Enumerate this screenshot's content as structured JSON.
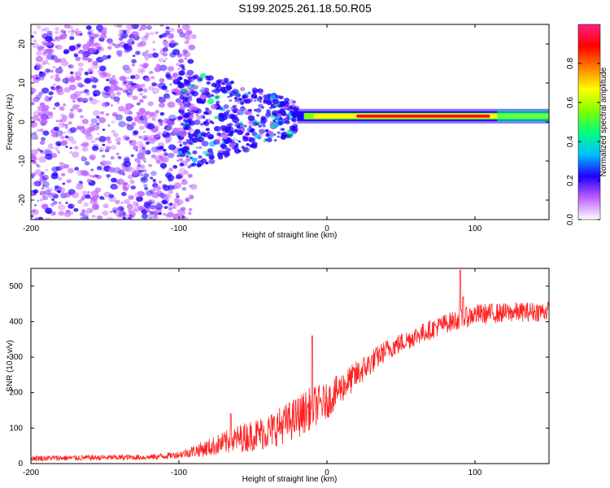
{
  "title": "S199.2025.261.18.50.R05",
  "chart_data": [
    {
      "type": "heatmap",
      "name": "spectrogram",
      "xlabel": "Height of straight line (km)",
      "ylabel": "Frequency (Hz)",
      "xlim": [
        -200,
        150
      ],
      "ylim": [
        -25,
        25
      ],
      "xticks": [
        -200,
        -100,
        0,
        100
      ],
      "xtick_labels": [
        "-200",
        "-100",
        "0",
        "100"
      ],
      "yticks": [
        -20,
        -10,
        0,
        10,
        20
      ],
      "ytick_labels": [
        "-20",
        "-10",
        "0",
        "10",
        "20"
      ],
      "colorbar": {
        "label": "Normalized spectral amplitude",
        "range": [
          0.0,
          1.0
        ],
        "ticks": [
          0.0,
          0.2,
          0.4,
          0.6,
          0.8
        ],
        "tick_labels": [
          "0.0",
          "0.2",
          "0.4",
          "0.6",
          "0.8"
        ],
        "colors": [
          "#ffffff",
          "#c060ff",
          "#2000ff",
          "#00c0ff",
          "#00ff80",
          "#80ff00",
          "#ffff00",
          "#ff8000",
          "#ff0000",
          "#ff2080"
        ]
      },
      "features": {
        "noise_region_x": [
          -200,
          -100
        ],
        "band_start_x": -20,
        "band_frequency_hz": 1.5,
        "peak_band_x": [
          20,
          110
        ]
      }
    },
    {
      "type": "line",
      "name": "snr",
      "xlabel": "Height of straight line (km)",
      "ylabel": "SNR (10 * v/v)",
      "xlim": [
        -200,
        150
      ],
      "ylim": [
        0,
        550
      ],
      "xticks": [
        -200,
        -100,
        0,
        100
      ],
      "xtick_labels": [
        "-200",
        "-100",
        "0",
        "100"
      ],
      "yticks": [
        0,
        100,
        200,
        300,
        400,
        500
      ],
      "ytick_labels": [
        "0",
        "100",
        "200",
        "300",
        "400",
        "500"
      ],
      "color": "#ff2020",
      "trend_x": [
        -200,
        -120,
        -100,
        -80,
        -60,
        -40,
        -20,
        -10,
        0,
        10,
        20,
        40,
        60,
        80,
        100,
        120,
        150
      ],
      "trend_y": [
        15,
        18,
        25,
        45,
        70,
        90,
        130,
        160,
        175,
        215,
        250,
        320,
        360,
        395,
        420,
        425,
        430
      ],
      "noise_amplitude": [
        8,
        8,
        10,
        25,
        40,
        50,
        60,
        60,
        50,
        45,
        40,
        30,
        28,
        28,
        30,
        28,
        28
      ],
      "spikes": [
        {
          "x": -65,
          "y": 140
        },
        {
          "x": -10,
          "y": 360
        },
        {
          "x": 90,
          "y": 545
        },
        {
          "x": 92,
          "y": 470
        }
      ]
    }
  ]
}
